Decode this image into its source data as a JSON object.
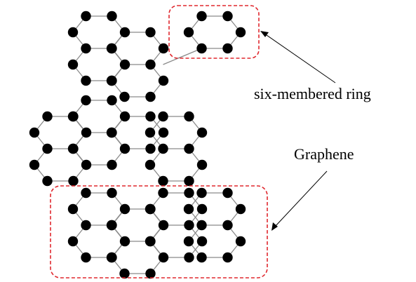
{
  "labels": {
    "six_membered_ring": "six-membered ring",
    "graphene": "Graphene"
  },
  "colors": {
    "atom": "#000000",
    "bond": "#8a8a8a",
    "highlight": "#e0282e",
    "pointer": "#000000",
    "background": "#ffffff"
  }
}
